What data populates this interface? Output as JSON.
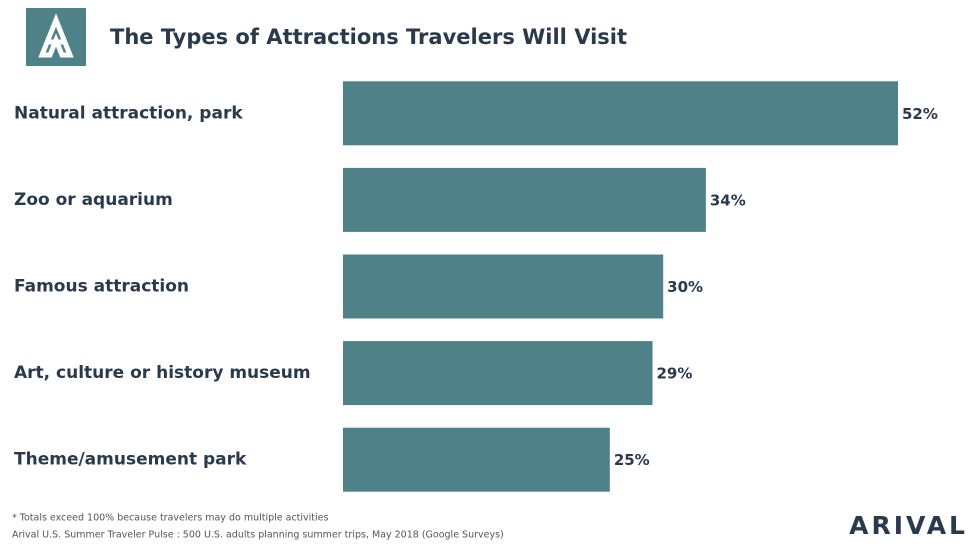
{
  "chart_data": {
    "type": "bar",
    "orientation": "horizontal",
    "title": "The Types of Attractions Travelers Will Visit",
    "categories": [
      "Natural attraction, park",
      "Zoo or aquarium",
      "Famous attraction",
      "Art, culture or history museum",
      "Theme/amusement park"
    ],
    "values": [
      52,
      34,
      30,
      29,
      25
    ],
    "value_labels": [
      "52%",
      "34%",
      "30%",
      "29%",
      "25%"
    ],
    "color": "#4e8188",
    "xlim": [
      0,
      55
    ],
    "notes": [
      "* Totals exceed 100% because travelers may do multiple activities",
      "Arival U.S. Summer Traveler Pulse : 500 U.S. adults planning summer trips, May 2018 (Google Surveys)"
    ],
    "brand": "ARIVAL"
  }
}
